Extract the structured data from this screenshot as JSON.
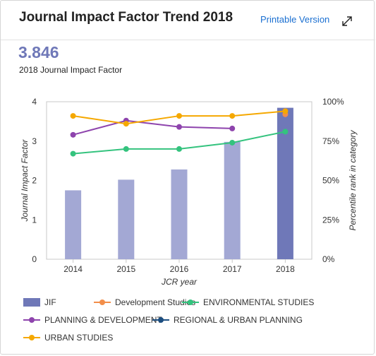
{
  "header": {
    "title": "Journal Impact Factor Trend 2018",
    "printable_label": "Printable Version",
    "expand_icon": "expand-arrows-icon"
  },
  "summary": {
    "value": "3.846",
    "caption": "2018 Journal Impact Factor"
  },
  "colors": {
    "jif": "#a3a8d4",
    "jif_current": "#6f78b8",
    "development_studies": "#f28e4a",
    "environmental_studies": "#34c37e",
    "planning_development": "#8e44ad",
    "regional_urban_planning": "#1c4e80",
    "urban_studies": "#f5a800"
  },
  "chart_data": {
    "type": "bar",
    "categories": [
      "2014",
      "2015",
      "2016",
      "2017",
      "2018"
    ],
    "xlabel": "JCR year",
    "ylabel": "Journal Impact Factor",
    "y2label": "Percentile rank in category",
    "ylim": [
      0,
      4
    ],
    "y_ticks": [
      "0",
      "1",
      "2",
      "3",
      "4"
    ],
    "y2lim": [
      0,
      100
    ],
    "y2_ticks": [
      "0%",
      "25%",
      "50%",
      "75%",
      "100%"
    ],
    "grid": false,
    "legend_position": "bottom",
    "series": [
      {
        "name": "JIF",
        "type": "bar",
        "axis": "left",
        "values": [
          1.75,
          2.02,
          2.28,
          2.98,
          3.846
        ]
      },
      {
        "name": "Development Studies",
        "type": "line",
        "axis": "right",
        "values": [
          null,
          null,
          null,
          null,
          92
        ]
      },
      {
        "name": "ENVIRONMENTAL STUDIES",
        "type": "line",
        "axis": "right",
        "values": [
          67,
          70,
          70,
          74,
          81
        ]
      },
      {
        "name": "PLANNING & DEVELOPMENT",
        "type": "line",
        "axis": "right",
        "values": [
          79,
          88,
          84,
          83,
          null
        ]
      },
      {
        "name": "REGIONAL & URBAN PLANNING",
        "type": "line",
        "axis": "right",
        "values": [
          null,
          null,
          null,
          null,
          null
        ]
      },
      {
        "name": "URBAN STUDIES",
        "type": "line",
        "axis": "right",
        "values": [
          91,
          86,
          91,
          91,
          94
        ]
      }
    ]
  }
}
